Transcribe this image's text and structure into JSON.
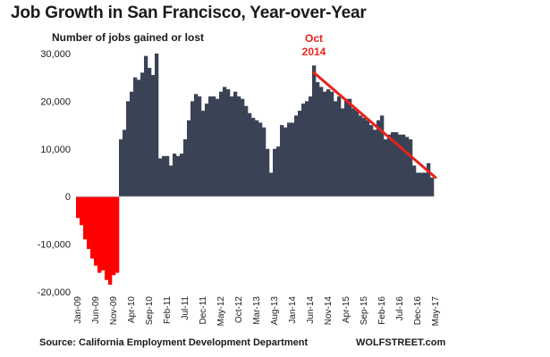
{
  "chart_data": {
    "type": "bar",
    "title": "Job Growth in San Francisco, Year-over-Year",
    "ylabel": "Number of jobs gained or lost",
    "xlabel": "",
    "ylim": [
      -20000,
      30000
    ],
    "yticks": [
      {
        "value": 30000,
        "label": "30,000"
      },
      {
        "value": 20000,
        "label": "20,000"
      },
      {
        "value": 10000,
        "label": "10,000"
      },
      {
        "value": 0,
        "label": "0"
      },
      {
        "value": -10000,
        "label": "-10,000"
      },
      {
        "value": -20000,
        "label": "-20,000"
      }
    ],
    "x_tick_labels": [
      {
        "index": 0,
        "label": "Jan-09"
      },
      {
        "index": 5,
        "label": "Jun-09"
      },
      {
        "index": 10,
        "label": "Nov-09"
      },
      {
        "index": 15,
        "label": "Apr-10"
      },
      {
        "index": 20,
        "label": "Sep-10"
      },
      {
        "index": 25,
        "label": "Feb-11"
      },
      {
        "index": 30,
        "label": "Jul-11"
      },
      {
        "index": 35,
        "label": "Dec-11"
      },
      {
        "index": 40,
        "label": "May-12"
      },
      {
        "index": 45,
        "label": "Oct-12"
      },
      {
        "index": 50,
        "label": "Mar-13"
      },
      {
        "index": 55,
        "label": "Aug-13"
      },
      {
        "index": 60,
        "label": "Jan-14"
      },
      {
        "index": 65,
        "label": "Jun-14"
      },
      {
        "index": 70,
        "label": "Nov-14"
      },
      {
        "index": 75,
        "label": "Apr-15"
      },
      {
        "index": 80,
        "label": "Sep-15"
      },
      {
        "index": 85,
        "label": "Feb-16"
      },
      {
        "index": 90,
        "label": "Jul-16"
      },
      {
        "index": 95,
        "label": "Dec-16"
      },
      {
        "index": 100,
        "label": "May-17"
      }
    ],
    "values": [
      -4500,
      -6000,
      -9000,
      -11000,
      -13000,
      -14500,
      -16000,
      -15500,
      -17500,
      -18500,
      -16500,
      -16000,
      12000,
      14000,
      20000,
      22000,
      25000,
      24500,
      26000,
      29500,
      27000,
      25500,
      30000,
      8000,
      8500,
      8500,
      6500,
      9000,
      8500,
      9000,
      12000,
      16000,
      20000,
      21500,
      21000,
      18000,
      19500,
      21000,
      21000,
      20500,
      22000,
      23000,
      22500,
      21000,
      22000,
      21000,
      20500,
      19000,
      17500,
      16500,
      16000,
      15500,
      14500,
      10000,
      5000,
      10000,
      10500,
      15000,
      14500,
      15500,
      15500,
      17000,
      18000,
      19500,
      20000,
      21000,
      27500,
      24000,
      23000,
      22000,
      22500,
      22000,
      20000,
      21000,
      18500,
      20500,
      20500,
      18500,
      18000,
      17000,
      16500,
      16000,
      15000,
      14000,
      16000,
      17000,
      12000,
      13000,
      13500,
      13500,
      13000,
      13000,
      12500,
      12000,
      6500,
      5000,
      5000,
      5000,
      7000,
      4000
    ],
    "negative_color": "#ff0000",
    "positive_color": "#3a4356",
    "trend_line": {
      "from_index": 66,
      "from_value": 26000,
      "to_index": 100,
      "to_value": 4000,
      "color": "#e8231b"
    },
    "annotation": {
      "lines": [
        "Oct",
        "2014"
      ],
      "color": "#e8231b",
      "index": 66
    },
    "grid": false,
    "legend": "none"
  },
  "footer": {
    "source": "Source: California Employment Development Department",
    "brand": "WOLFSTREET.com"
  }
}
